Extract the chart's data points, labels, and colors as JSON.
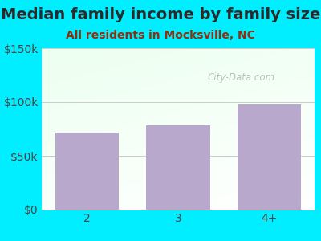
{
  "title": "Median family income by family size",
  "subtitle": "All residents in Mocksville, NC",
  "categories": [
    "2",
    "3",
    "4+"
  ],
  "values": [
    72000,
    78000,
    98000
  ],
  "bar_color": "#b8a8cc",
  "title_color": "#2a2a2a",
  "subtitle_color": "#8b3010",
  "bg_color": "#00eeff",
  "plot_bg_topleft": "#d0f0d8",
  "plot_bg_topright": "#f0f8f8",
  "plot_bg_bottomleft": "#e8f8e8",
  "plot_bg_bottomright": "#ffffff",
  "ylim": [
    0,
    150000
  ],
  "yticks": [
    0,
    50000,
    100000,
    150000
  ],
  "ytick_labels": [
    "$0",
    "$50k",
    "$100k",
    "$150k"
  ],
  "watermark": "City-Data.com",
  "title_fontsize": 14,
  "subtitle_fontsize": 10,
  "tick_fontsize": 10
}
